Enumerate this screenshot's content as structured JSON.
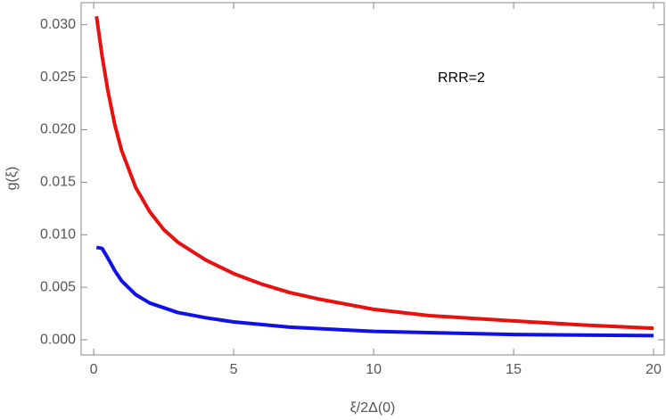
{
  "chart_data": {
    "type": "line",
    "annotation": "RRR=2",
    "xlabel": "ξ/2Δ(0)",
    "ylabel": "g(ξ)",
    "xlim": [
      -0.45,
      20.38
    ],
    "ylim": [
      -0.00144,
      0.0321
    ],
    "xticks": [
      0,
      5,
      10,
      15,
      20
    ],
    "yticks": [
      {
        "value": 0,
        "label": "0.000"
      },
      {
        "value": 0.005,
        "label": "0.005"
      },
      {
        "value": 0.01,
        "label": "0.010"
      },
      {
        "value": 0.015,
        "label": "0.015"
      },
      {
        "value": 0.02,
        "label": "0.020"
      },
      {
        "value": 0.025,
        "label": "0.025"
      },
      {
        "value": 0.03,
        "label": "0.030"
      }
    ],
    "series": [
      {
        "color": "#e8110f",
        "x": [
          0.1,
          0.3,
          0.5,
          0.75,
          1,
          1.5,
          2,
          2.5,
          3,
          4,
          5,
          6,
          7,
          8,
          10,
          12,
          15,
          17.5,
          20
        ],
        "values": [
          0.0308,
          0.027,
          0.0238,
          0.0205,
          0.018,
          0.0145,
          0.0122,
          0.0105,
          0.0093,
          0.0076,
          0.0063,
          0.0053,
          0.0045,
          0.0039,
          0.0029,
          0.0023,
          0.0018,
          0.0014,
          0.0011
        ]
      },
      {
        "color": "#1010e8",
        "x": [
          0.1,
          0.3,
          0.5,
          0.75,
          1,
          1.5,
          2,
          3,
          4,
          5,
          7,
          10,
          15,
          20
        ],
        "values": [
          0.0088,
          0.0087,
          0.0078,
          0.0066,
          0.0056,
          0.0043,
          0.0035,
          0.0026,
          0.0021,
          0.0017,
          0.0012,
          0.0008,
          0.0005,
          0.0004
        ]
      }
    ]
  }
}
